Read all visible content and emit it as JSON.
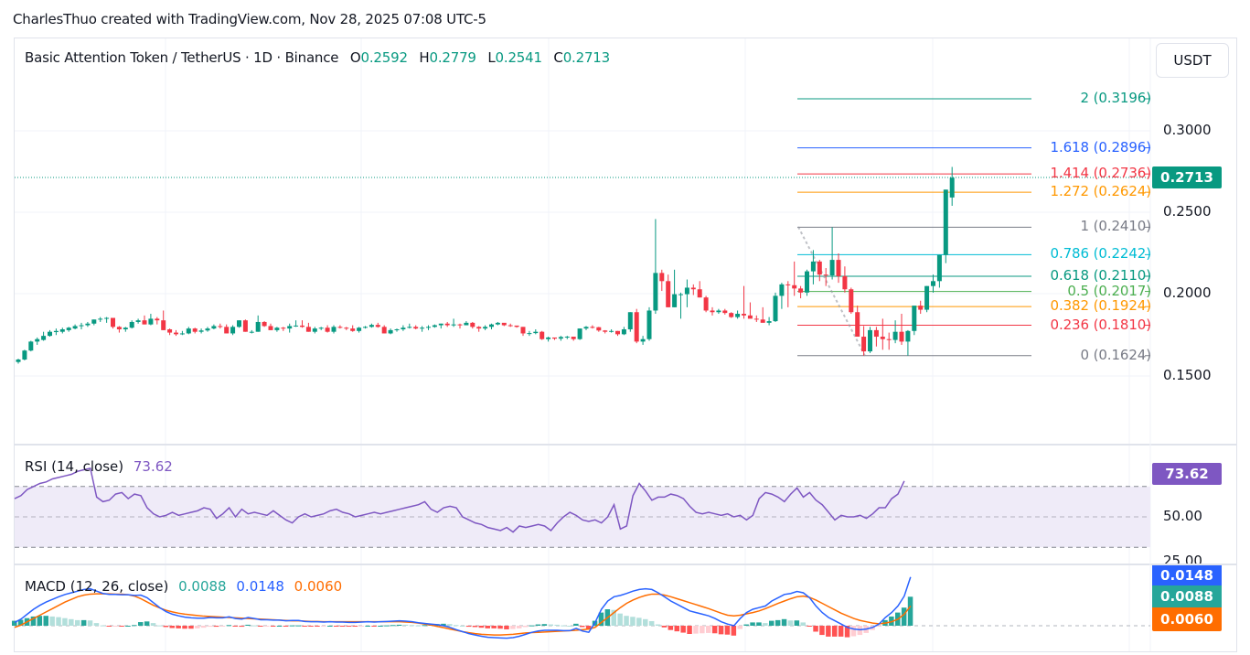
{
  "credit": "CharlesThuo created with TradingView.com, Nov 28, 2025 07:08 UTC-5",
  "header": {
    "symbol": "Basic Attention Token / TetherUS · 1D · Binance",
    "ohlc": {
      "o_label": "O",
      "o": "0.2592",
      "h_label": "H",
      "h": "0.2779",
      "l_label": "L",
      "l": "0.2541",
      "c_label": "C",
      "c": "0.2713"
    },
    "currency_button": "USDT"
  },
  "price_axis": {
    "labels": [
      "0.3000",
      "0.2500",
      "0.2000",
      "0.1500"
    ],
    "current_price": "0.2713"
  },
  "fib_levels": [
    {
      "ratio": "2",
      "price": "0.3196",
      "text": "2 (0.3196)",
      "color": "#089981"
    },
    {
      "ratio": "1.618",
      "price": "0.2896",
      "text": "1.618 (0.2896)",
      "color": "#2962ff"
    },
    {
      "ratio": "1.414",
      "price": "0.2736",
      "text": "1.414 (0.2736)",
      "color": "#f23645"
    },
    {
      "ratio": "1.272",
      "price": "0.2624",
      "text": "1.272 (0.2624)",
      "color": "#ff9800"
    },
    {
      "ratio": "1",
      "price": "0.2410",
      "text": "1 (0.2410)",
      "color": "#787b86"
    },
    {
      "ratio": "0.786",
      "price": "0.2242",
      "text": "0.786 (0.2242)",
      "color": "#00bcd4"
    },
    {
      "ratio": "0.618",
      "price": "0.2110",
      "text": "0.618 (0.2110)",
      "color": "#089981"
    },
    {
      "ratio": "0.5",
      "price": "0.2017",
      "text": "0.5 (0.2017)",
      "color": "#4caf50"
    },
    {
      "ratio": "0.382",
      "price": "0.1924",
      "text": "0.382 (0.1924)",
      "color": "#ff9800"
    },
    {
      "ratio": "0.236",
      "price": "0.1810",
      "text": "0.236 (0.1810)",
      "color": "#f23645"
    },
    {
      "ratio": "0",
      "price": "0.1624",
      "text": "0 (0.1624)",
      "color": "#787b86"
    }
  ],
  "rsi": {
    "label": "RSI (14, close)",
    "value": "73.62",
    "axis_labels": [
      "50.00",
      "25.00"
    ],
    "color": "#7e57c2"
  },
  "macd": {
    "label": "MACD (12, 26, close)",
    "histogram": "0.0088",
    "macd": "0.0148",
    "signal": "0.0060",
    "hist_color": "#26a69a",
    "macd_color": "#2962ff",
    "signal_color": "#ff6d00"
  },
  "colors": {
    "up": "#089981",
    "down": "#f23645",
    "grid": "#f0f3fa",
    "rsi_band": "#efebf8"
  },
  "chart_data": {
    "type": "candlestick",
    "title": "Basic Attention Token / TetherUS · 1D · Binance",
    "ylabel": "USDT",
    "ylim": [
      0.12,
      0.33
    ],
    "yticks": [
      0.15,
      0.2,
      0.25,
      0.3
    ],
    "candles": [
      [
        0.1585,
        0.1605,
        0.1575,
        0.16
      ],
      [
        0.16,
        0.166,
        0.1595,
        0.1655
      ],
      [
        0.1655,
        0.1715,
        0.165,
        0.171
      ],
      [
        0.171,
        0.1735,
        0.169,
        0.1725
      ],
      [
        0.172,
        0.177,
        0.1715,
        0.1745
      ],
      [
        0.1745,
        0.178,
        0.174,
        0.177
      ],
      [
        0.1768,
        0.179,
        0.175,
        0.1775
      ],
      [
        0.177,
        0.1795,
        0.176,
        0.1785
      ],
      [
        0.178,
        0.18,
        0.177,
        0.1795
      ],
      [
        0.179,
        0.1815,
        0.1785,
        0.1805
      ],
      [
        0.1805,
        0.1825,
        0.1785,
        0.181
      ],
      [
        0.181,
        0.183,
        0.18,
        0.182
      ],
      [
        0.182,
        0.1845,
        0.181,
        0.1845
      ],
      [
        0.1845,
        0.186,
        0.183,
        0.185
      ],
      [
        0.185,
        0.186,
        0.1825,
        0.1855
      ],
      [
        0.1855,
        0.185,
        0.179,
        0.18
      ],
      [
        0.18,
        0.1805,
        0.1765,
        0.1785
      ],
      [
        0.1785,
        0.18,
        0.177,
        0.1795
      ],
      [
        0.1795,
        0.184,
        0.179,
        0.183
      ],
      [
        0.183,
        0.185,
        0.182,
        0.184
      ],
      [
        0.184,
        0.187,
        0.1815,
        0.1815
      ],
      [
        0.1815,
        0.188,
        0.181,
        0.185
      ],
      [
        0.185,
        0.186,
        0.1815,
        0.184
      ],
      [
        0.184,
        0.19,
        0.178,
        0.178
      ],
      [
        0.1785,
        0.179,
        0.175,
        0.1765
      ],
      [
        0.1765,
        0.178,
        0.1745,
        0.1755
      ],
      [
        0.1755,
        0.1775,
        0.175,
        0.176
      ],
      [
        0.176,
        0.18,
        0.1755,
        0.179
      ],
      [
        0.179,
        0.1795,
        0.176,
        0.177
      ],
      [
        0.177,
        0.179,
        0.176,
        0.1778
      ],
      [
        0.1778,
        0.18,
        0.177,
        0.179
      ],
      [
        0.179,
        0.1815,
        0.1785,
        0.1805
      ],
      [
        0.1805,
        0.182,
        0.179,
        0.18
      ],
      [
        0.18,
        0.1815,
        0.176,
        0.176
      ],
      [
        0.176,
        0.181,
        0.175,
        0.18
      ],
      [
        0.18,
        0.184,
        0.1795,
        0.184
      ],
      [
        0.184,
        0.1845,
        0.177,
        0.177
      ],
      [
        0.177,
        0.178,
        0.176,
        0.177
      ],
      [
        0.177,
        0.187,
        0.177,
        0.183
      ],
      [
        0.183,
        0.1835,
        0.18,
        0.1805
      ],
      [
        0.1805,
        0.182,
        0.178,
        0.178
      ],
      [
        0.178,
        0.18,
        0.177,
        0.1795
      ],
      [
        0.1795,
        0.18,
        0.1775,
        0.179
      ],
      [
        0.179,
        0.182,
        0.1765,
        0.1805
      ],
      [
        0.1805,
        0.184,
        0.18,
        0.1808
      ],
      [
        0.1808,
        0.184,
        0.1795,
        0.18
      ],
      [
        0.18,
        0.1825,
        0.177,
        0.177
      ],
      [
        0.177,
        0.18,
        0.176,
        0.179
      ],
      [
        0.179,
        0.18,
        0.178,
        0.1795
      ],
      [
        0.1795,
        0.181,
        0.1765,
        0.177
      ],
      [
        0.177,
        0.181,
        0.176,
        0.18
      ],
      [
        0.18,
        0.181,
        0.179,
        0.1795
      ],
      [
        0.1795,
        0.18,
        0.178,
        0.179
      ],
      [
        0.179,
        0.181,
        0.177,
        0.1775
      ],
      [
        0.1775,
        0.18,
        0.1765,
        0.1795
      ],
      [
        0.1795,
        0.1805,
        0.179,
        0.18
      ],
      [
        0.18,
        0.182,
        0.1795,
        0.1812
      ],
      [
        0.1812,
        0.1825,
        0.1795,
        0.18
      ],
      [
        0.18,
        0.181,
        0.176,
        0.176
      ],
      [
        0.176,
        0.179,
        0.1755,
        0.178
      ],
      [
        0.178,
        0.179,
        0.177,
        0.1785
      ],
      [
        0.1785,
        0.181,
        0.1775,
        0.1795
      ],
      [
        0.1795,
        0.182,
        0.179,
        0.18
      ],
      [
        0.18,
        0.181,
        0.1785,
        0.179
      ],
      [
        0.179,
        0.1805,
        0.177,
        0.1795
      ],
      [
        0.1795,
        0.181,
        0.178,
        0.18
      ],
      [
        0.18,
        0.1815,
        0.1795,
        0.181
      ],
      [
        0.181,
        0.182,
        0.179,
        0.182
      ],
      [
        0.182,
        0.183,
        0.18,
        0.181
      ],
      [
        0.181,
        0.185,
        0.18,
        0.1815
      ],
      [
        0.1815,
        0.182,
        0.179,
        0.181
      ],
      [
        0.181,
        0.1835,
        0.181,
        0.1825
      ],
      [
        0.1825,
        0.183,
        0.179,
        0.18
      ],
      [
        0.18,
        0.1805,
        0.177,
        0.179
      ],
      [
        0.179,
        0.181,
        0.178,
        0.18
      ],
      [
        0.18,
        0.182,
        0.1785,
        0.1815
      ],
      [
        0.1815,
        0.183,
        0.181,
        0.1825
      ],
      [
        0.1825,
        0.182,
        0.1805,
        0.181
      ],
      [
        0.181,
        0.182,
        0.18,
        0.1808
      ],
      [
        0.1808,
        0.1805,
        0.1795,
        0.18
      ],
      [
        0.18,
        0.18,
        0.1745,
        0.176
      ],
      [
        0.176,
        0.1775,
        0.1745,
        0.1762
      ],
      [
        0.1762,
        0.1785,
        0.1755,
        0.177
      ],
      [
        0.177,
        0.1775,
        0.172,
        0.1725
      ],
      [
        0.1725,
        0.174,
        0.171,
        0.1735
      ],
      [
        0.1735,
        0.173,
        0.172,
        0.1728
      ],
      [
        0.1728,
        0.1745,
        0.1715,
        0.1738
      ],
      [
        0.1738,
        0.1745,
        0.1725,
        0.174
      ],
      [
        0.174,
        0.1735,
        0.1715,
        0.1725
      ],
      [
        0.1725,
        0.179,
        0.172,
        0.179
      ],
      [
        0.179,
        0.1805,
        0.178,
        0.18
      ],
      [
        0.18,
        0.181,
        0.179,
        0.1798
      ],
      [
        0.1798,
        0.18,
        0.177,
        0.1778
      ],
      [
        0.1778,
        0.178,
        0.176,
        0.177
      ],
      [
        0.177,
        0.1785,
        0.1765,
        0.1775
      ],
      [
        0.1775,
        0.1775,
        0.1745,
        0.1755
      ],
      [
        0.1755,
        0.18,
        0.175,
        0.1785
      ],
      [
        0.1785,
        0.189,
        0.177,
        0.189
      ],
      [
        0.189,
        0.191,
        0.17,
        0.171
      ],
      [
        0.171,
        0.1745,
        0.169,
        0.1725
      ],
      [
        0.1725,
        0.192,
        0.1715,
        0.19
      ],
      [
        0.19,
        0.246,
        0.188,
        0.213
      ],
      [
        0.213,
        0.215,
        0.202,
        0.208
      ],
      [
        0.208,
        0.212,
        0.192,
        0.192
      ],
      [
        0.192,
        0.215,
        0.192,
        0.2
      ],
      [
        0.2,
        0.201,
        0.185,
        0.2
      ],
      [
        0.2,
        0.209,
        0.192,
        0.204
      ],
      [
        0.204,
        0.206,
        0.1995,
        0.203
      ],
      [
        0.203,
        0.208,
        0.198,
        0.198
      ],
      [
        0.198,
        0.199,
        0.189,
        0.19
      ],
      [
        0.19,
        0.192,
        0.187,
        0.189
      ],
      [
        0.189,
        0.191,
        0.188,
        0.19
      ],
      [
        0.19,
        0.191,
        0.1875,
        0.1885
      ],
      [
        0.1885,
        0.189,
        0.1855,
        0.186
      ],
      [
        0.186,
        0.19,
        0.185,
        0.188
      ],
      [
        0.188,
        0.205,
        0.185,
        0.187
      ],
      [
        0.187,
        0.195,
        0.186,
        0.185
      ],
      [
        0.185,
        0.187,
        0.183,
        0.1845
      ],
      [
        0.1845,
        0.192,
        0.183,
        0.1825
      ],
      [
        0.1825,
        0.186,
        0.181,
        0.1835
      ],
      [
        0.1835,
        0.201,
        0.183,
        0.199
      ],
      [
        0.199,
        0.207,
        0.191,
        0.206
      ],
      [
        0.206,
        0.208,
        0.192,
        0.2055
      ],
      [
        0.2055,
        0.22,
        0.199,
        0.2035
      ],
      [
        0.2035,
        0.205,
        0.1975,
        0.201
      ],
      [
        0.201,
        0.215,
        0.199,
        0.214
      ],
      [
        0.214,
        0.227,
        0.206,
        0.22
      ],
      [
        0.22,
        0.221,
        0.208,
        0.212
      ],
      [
        0.212,
        0.216,
        0.205,
        0.2115
      ],
      [
        0.2115,
        0.241,
        0.209,
        0.221
      ],
      [
        0.221,
        0.225,
        0.207,
        0.211
      ],
      [
        0.211,
        0.217,
        0.201,
        0.203
      ],
      [
        0.203,
        0.204,
        0.188,
        0.189
      ],
      [
        0.189,
        0.193,
        0.174,
        0.174
      ],
      [
        0.174,
        0.1805,
        0.1624,
        0.165
      ],
      [
        0.165,
        0.18,
        0.164,
        0.178
      ],
      [
        0.178,
        0.18,
        0.168,
        0.174
      ],
      [
        0.174,
        0.185,
        0.166,
        0.1725
      ],
      [
        0.1725,
        0.1765,
        0.166,
        0.172
      ],
      [
        0.172,
        0.184,
        0.17,
        0.177
      ],
      [
        0.177,
        0.188,
        0.169,
        0.171
      ],
      [
        0.171,
        0.178,
        0.1624,
        0.1775
      ],
      [
        0.1775,
        0.192,
        0.175,
        0.193
      ],
      [
        0.193,
        0.196,
        0.188,
        0.1905
      ],
      [
        0.1905,
        0.205,
        0.189,
        0.205
      ],
      [
        0.205,
        0.212,
        0.201,
        0.208
      ],
      [
        0.208,
        0.224,
        0.204,
        0.224
      ],
      [
        0.224,
        0.264,
        0.219,
        0.264
      ],
      [
        0.2592,
        0.2779,
        0.2541,
        0.2713
      ]
    ],
    "rsi": [
      62,
      64,
      68,
      70,
      72,
      73,
      75,
      76,
      77,
      78,
      80,
      81,
      82,
      63,
      60,
      61,
      65,
      66,
      62,
      65,
      64,
      56,
      52,
      50,
      51,
      53,
      51,
      52,
      53,
      54,
      56,
      55,
      49,
      52,
      56,
      50,
      55,
      52,
      53,
      52,
      51,
      54,
      51,
      48,
      46,
      50,
      52,
      50,
      51,
      52,
      54,
      55,
      53,
      52,
      50,
      51,
      52,
      53,
      52,
      53,
      54,
      55,
      56,
      57,
      58,
      60,
      55,
      53,
      56,
      57,
      56,
      50,
      48,
      46,
      45,
      43,
      42,
      41,
      43,
      40,
      44,
      43,
      44,
      45,
      44,
      41,
      46,
      50,
      53,
      51,
      48,
      47,
      48,
      46,
      50,
      58,
      42,
      44,
      64,
      72,
      67,
      61,
      63,
      63,
      65,
      64,
      62,
      57,
      53,
      52,
      53,
      52,
      51,
      52,
      50,
      51,
      48,
      51,
      62,
      66,
      65,
      63,
      60,
      65,
      69,
      63,
      66,
      61,
      58,
      53,
      48,
      51,
      50,
      50,
      51,
      49,
      52,
      56,
      56,
      62,
      65,
      73.6
    ],
    "macd_line": [
      0.001,
      0.002,
      0.0035,
      0.005,
      0.0062,
      0.0072,
      0.008,
      0.0088,
      0.0095,
      0.01,
      0.0105,
      0.011,
      0.0112,
      0.0105,
      0.0098,
      0.0095,
      0.0095,
      0.0094,
      0.0094,
      0.0092,
      0.0093,
      0.0085,
      0.007,
      0.0055,
      0.0043,
      0.0035,
      0.003,
      0.0026,
      0.0024,
      0.0023,
      0.0023,
      0.0025,
      0.0024,
      0.0024,
      0.0027,
      0.0022,
      0.002,
      0.0025,
      0.0022,
      0.0018,
      0.0018,
      0.0017,
      0.0017,
      0.0015,
      0.0016,
      0.0016,
      0.0013,
      0.0012,
      0.0012,
      0.0011,
      0.0012,
      0.0011,
      0.0011,
      0.001,
      0.001,
      0.0011,
      0.0012,
      0.0011,
      0.0012,
      0.0013,
      0.0014,
      0.0015,
      0.0014,
      0.0012,
      0.0009,
      0.0007,
      0.0005,
      0.0003,
      0.0,
      -0.0005,
      -0.0012,
      -0.0018,
      -0.0024,
      -0.0028,
      -0.0032,
      -0.0035,
      -0.0036,
      -0.0037,
      -0.0038,
      -0.0036,
      -0.0032,
      -0.0026,
      -0.002,
      -0.0016,
      -0.0014,
      -0.0014,
      -0.0014,
      -0.0015,
      -0.0015,
      -0.0008,
      -0.0016,
      -0.002,
      0.001,
      0.005,
      0.0075,
      0.0088,
      0.0092,
      0.0098,
      0.0105,
      0.011,
      0.0112,
      0.011,
      0.01,
      0.0088,
      0.0075,
      0.0065,
      0.0055,
      0.0045,
      0.004,
      0.0035,
      0.003,
      0.0022,
      0.0012,
      0.0005,
      0.0,
      0.0022,
      0.004,
      0.005,
      0.0055,
      0.006,
      0.0075,
      0.0085,
      0.0095,
      0.0098,
      0.0104,
      0.01,
      0.0085,
      0.006,
      0.004,
      0.0025,
      0.0015,
      0.0005,
      -0.0005,
      -0.001,
      -0.0012,
      -0.001,
      -0.0005,
      0.0005,
      0.0025,
      0.004,
      0.006,
      0.009,
      0.0148
    ],
    "signal_line": [
      -0.0005,
      0.0002,
      0.0012,
      0.0022,
      0.0032,
      0.0042,
      0.0052,
      0.0062,
      0.0072,
      0.008,
      0.0088,
      0.0093,
      0.0096,
      0.0097,
      0.0097,
      0.0097,
      0.0096,
      0.0096,
      0.0094,
      0.009,
      0.0082,
      0.0072,
      0.0062,
      0.0054,
      0.0047,
      0.0042,
      0.0038,
      0.0035,
      0.0033,
      0.0031,
      0.0029,
      0.0028,
      0.0027,
      0.0026,
      0.0025,
      0.0024,
      0.0023,
      0.0022,
      0.0021,
      0.002,
      0.0019,
      0.0018,
      0.0017,
      0.0016,
      0.0015,
      0.0015,
      0.0014,
      0.0013,
      0.0013,
      0.0012,
      0.0012,
      0.0012,
      0.0012,
      0.0012,
      0.0012,
      0.0012,
      0.0012,
      0.0012,
      0.0012,
      0.0012,
      0.0012,
      0.0012,
      0.0011,
      0.001,
      0.0008,
      0.0005,
      0.0002,
      -0.0002,
      -0.0006,
      -0.001,
      -0.0014,
      -0.0018,
      -0.0021,
      -0.0024,
      -0.0026,
      -0.0027,
      -0.0028,
      -0.0028,
      -0.0027,
      -0.0026,
      -0.0024,
      -0.0022,
      -0.0021,
      -0.002,
      -0.0019,
      -0.0018,
      -0.0017,
      -0.0016,
      -0.0015,
      -0.0014,
      -0.0012,
      -0.001,
      -0.0005,
      0.001,
      0.0025,
      0.004,
      0.0055,
      0.0068,
      0.0078,
      0.0086,
      0.0092,
      0.0096,
      0.0096,
      0.0093,
      0.0088,
      0.0082,
      0.0076,
      0.007,
      0.0064,
      0.0058,
      0.0052,
      0.0045,
      0.0038,
      0.0032,
      0.003,
      0.0032,
      0.0036,
      0.004,
      0.0045,
      0.0052,
      0.006,
      0.0068,
      0.0075,
      0.0082,
      0.0088,
      0.009,
      0.0086,
      0.0078,
      0.0068,
      0.0058,
      0.0048,
      0.0038,
      0.003,
      0.0022,
      0.0016,
      0.0012,
      0.0008,
      0.0006,
      0.0008,
      0.0012,
      0.002,
      0.0035,
      0.006
    ]
  }
}
